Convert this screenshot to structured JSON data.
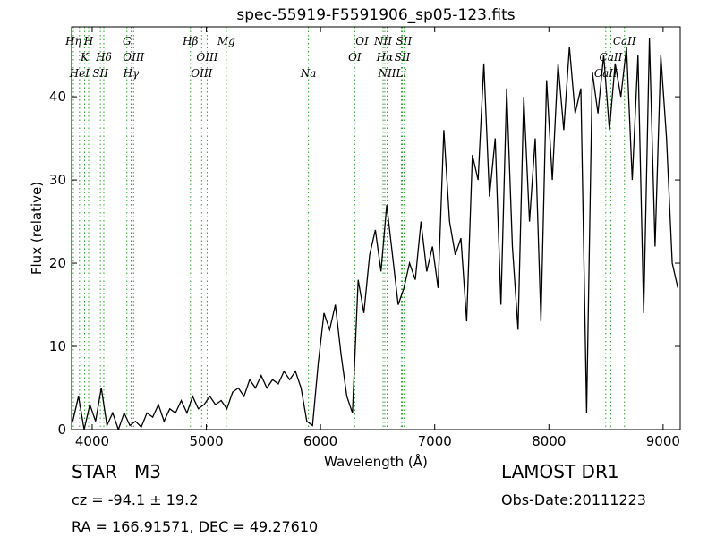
{
  "chart_data": {
    "type": "line",
    "title": "spec-55919-F5591906_sp05-123.fits",
    "x_label": "Wavelength (Å)",
    "y_label": "Flux (relative)",
    "xlim": [
      3820,
      9150
    ],
    "ylim": [
      0,
      48.4
    ],
    "xticks": [
      4000,
      5000,
      6000,
      7000,
      8000,
      9000
    ],
    "yticks": [
      0,
      10,
      20,
      30,
      40
    ],
    "x": [
      3830,
      3880,
      3930,
      3980,
      4030,
      4080,
      4130,
      4180,
      4230,
      4280,
      4330,
      4380,
      4430,
      4480,
      4530,
      4580,
      4630,
      4680,
      4730,
      4780,
      4830,
      4880,
      4930,
      4980,
      5030,
      5080,
      5130,
      5180,
      5230,
      5280,
      5330,
      5380,
      5430,
      5480,
      5530,
      5580,
      5630,
      5680,
      5730,
      5780,
      5830,
      5880,
      5930,
      5980,
      6030,
      6080,
      6130,
      6180,
      6230,
      6280,
      6330,
      6380,
      6430,
      6480,
      6530,
      6580,
      6630,
      6680,
      6730,
      6780,
      6830,
      6880,
      6930,
      6980,
      7030,
      7080,
      7130,
      7180,
      7230,
      7280,
      7330,
      7380,
      7430,
      7480,
      7530,
      7580,
      7630,
      7680,
      7730,
      7780,
      7830,
      7880,
      7930,
      7980,
      8030,
      8080,
      8130,
      8180,
      8230,
      8280,
      8330,
      8380,
      8430,
      8480,
      8530,
      8580,
      8630,
      8680,
      8730,
      8780,
      8830,
      8880,
      8930,
      8980,
      9030,
      9080,
      9130
    ],
    "series": [
      {
        "color": "#000000",
        "values": [
          1,
          4,
          0,
          3,
          1,
          5,
          0.5,
          2,
          0,
          2,
          0.5,
          1,
          0.3,
          2,
          1.5,
          3,
          1,
          2.5,
          2,
          3.5,
          2,
          4,
          2.5,
          3,
          4,
          3,
          3.5,
          2.5,
          4.5,
          5,
          4,
          6,
          5,
          6.5,
          5,
          6,
          5.5,
          7,
          6,
          7,
          5,
          1,
          0.5,
          8,
          14,
          12,
          15,
          9,
          4,
          2,
          18,
          14,
          21,
          24,
          19,
          27,
          21,
          15,
          17,
          20,
          18,
          25,
          19,
          22,
          17,
          36,
          25,
          21,
          23,
          13,
          33,
          30,
          44,
          28,
          35,
          15,
          41,
          22,
          12,
          40,
          25,
          35,
          13,
          42,
          30,
          44,
          36,
          46,
          38,
          41,
          2,
          43,
          38,
          45,
          36,
          44,
          40,
          46,
          30,
          45,
          14,
          47,
          22,
          45,
          35,
          20,
          17
        ]
      }
    ],
    "line_color": "#2ca02c",
    "lines": [
      {
        "label": "Hη",
        "wavelength": 3835
      },
      {
        "label": "K",
        "wavelength": 3934
      },
      {
        "label": "HeI",
        "wavelength": 3889
      },
      {
        "label": "H",
        "wavelength": 3969
      },
      {
        "label": "Hδ",
        "wavelength": 4102
      },
      {
        "label": "SII",
        "wavelength": 4072
      },
      {
        "label": "G",
        "wavelength": 4304
      },
      {
        "label": "OIII",
        "wavelength": 4363
      },
      {
        "label": "Hγ",
        "wavelength": 4341
      },
      {
        "label": "Hβ",
        "wavelength": 4861
      },
      {
        "label": "OIII",
        "wavelength": 5007
      },
      {
        "label": "OIII",
        "wavelength": 4959
      },
      {
        "label": "Mg",
        "wavelength": 5175
      },
      {
        "label": "OI",
        "wavelength": 6300
      },
      {
        "label": "Na",
        "wavelength": 5894
      },
      {
        "label": "OI",
        "wavelength": 6364
      },
      {
        "label": "Hα",
        "wavelength": 6563
      },
      {
        "label": "NII",
        "wavelength": 6583
      },
      {
        "label": "NII",
        "wavelength": 6548
      },
      {
        "label": "SII",
        "wavelength": 6716
      },
      {
        "label": "Li",
        "wavelength": 6708
      },
      {
        "label": "SII",
        "wavelength": 6731
      },
      {
        "label": "CaII",
        "wavelength": 8542
      },
      {
        "label": "CaII",
        "wavelength": 8498
      },
      {
        "label": "CaII",
        "wavelength": 8662
      }
    ],
    "object": "STAR   M3",
    "cz": "cz = -94.1 ± 19.2",
    "coords": "RA = 166.91571, DEC = 49.27610",
    "survey": "LAMOST DR1",
    "obs_date": "Obs-Date:20111223"
  }
}
